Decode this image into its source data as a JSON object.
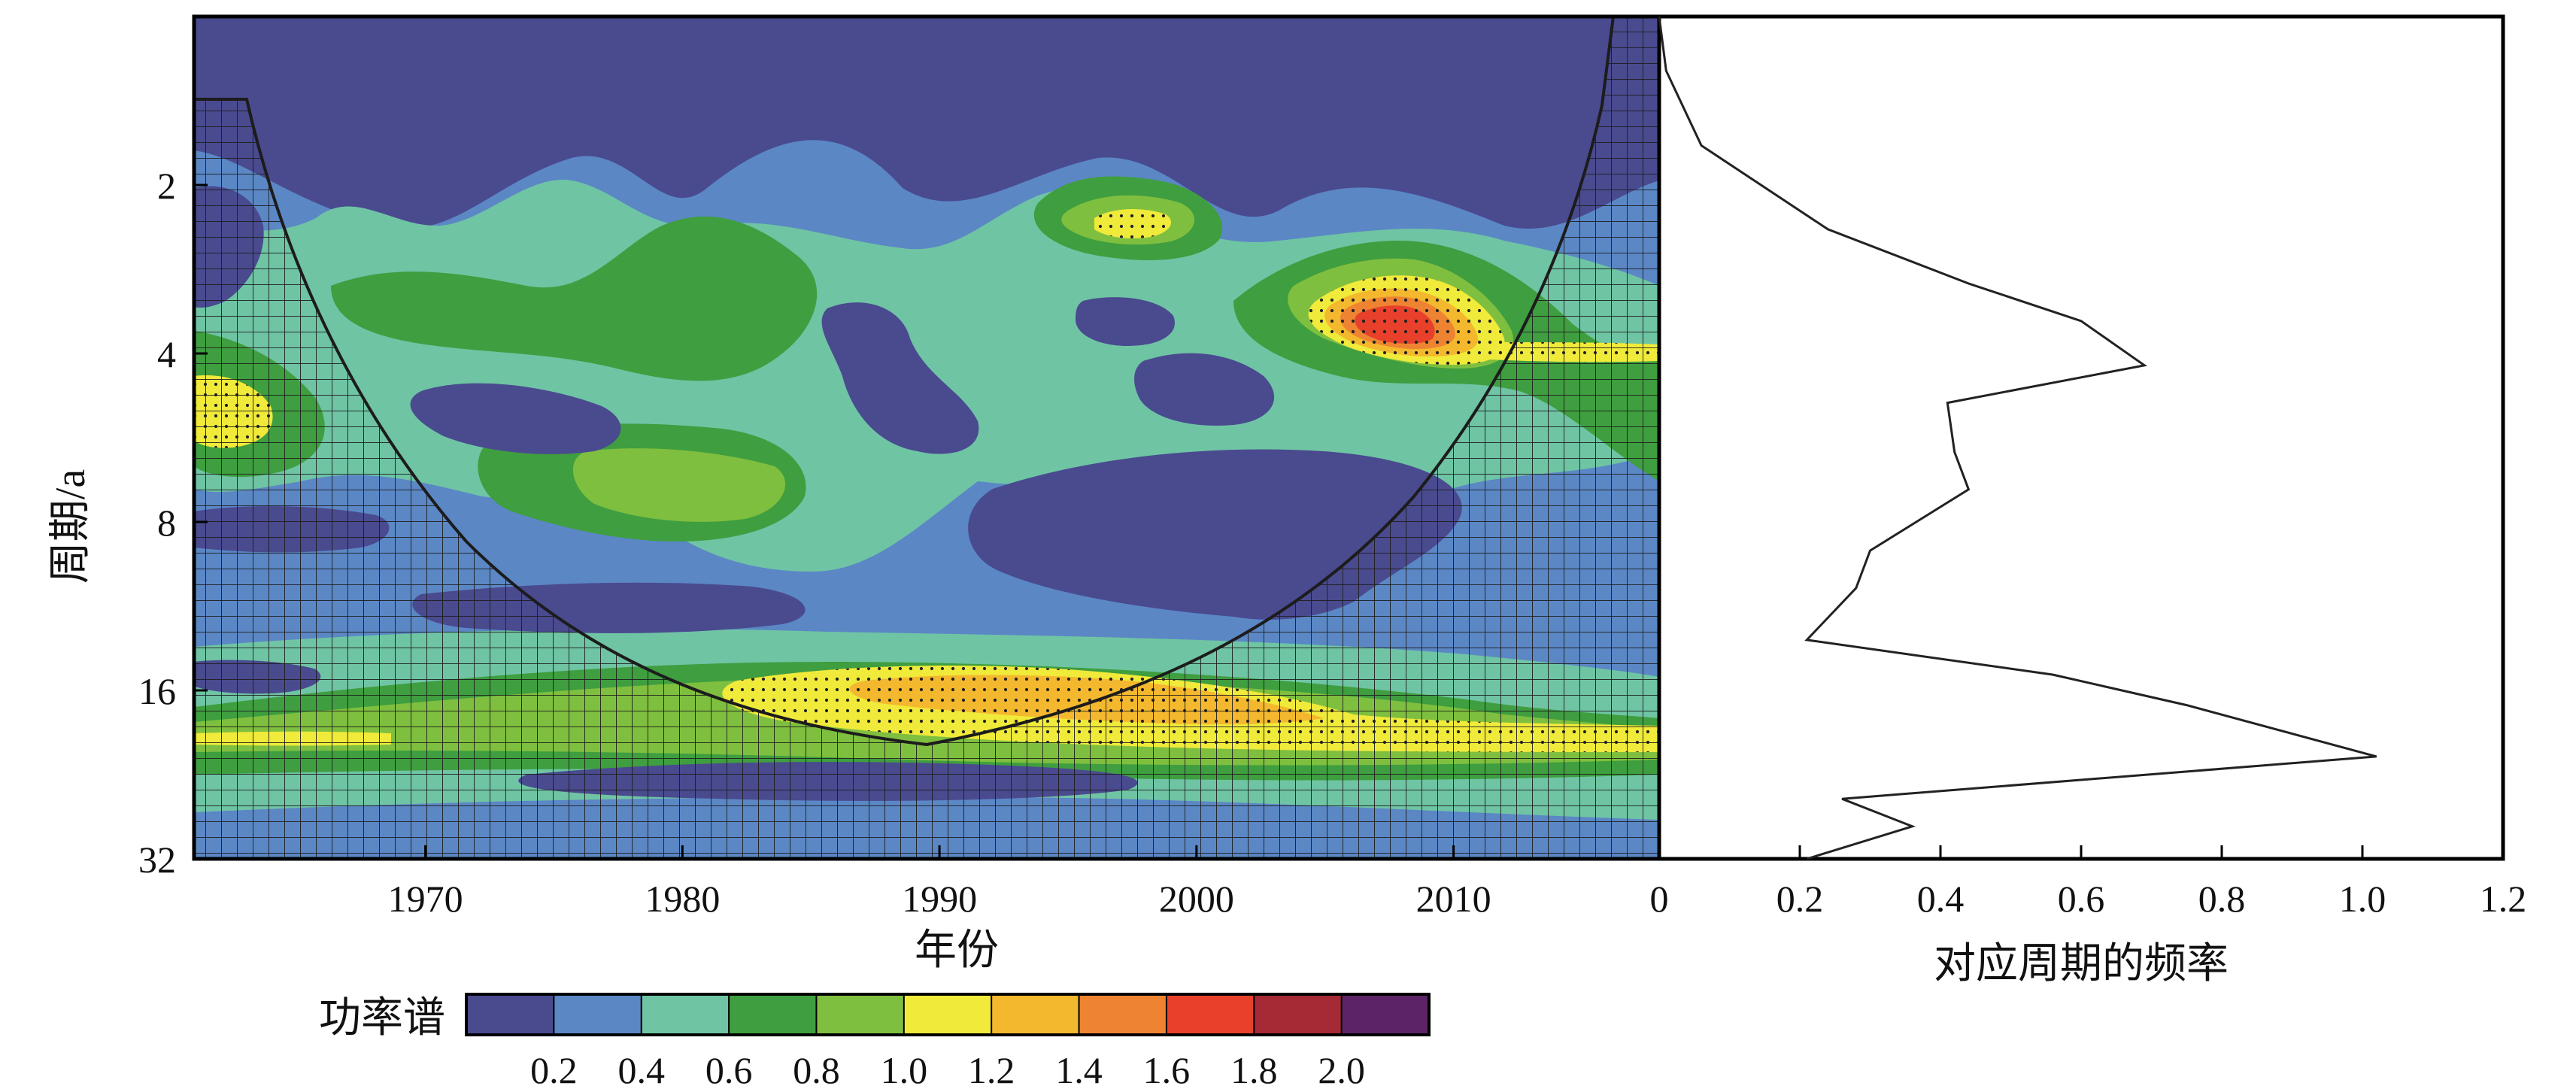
{
  "chart_data": [
    {
      "type": "heatmap",
      "subtype": "wavelet-power-spectrum",
      "xlabel": "年份",
      "ylabel": "周期/a",
      "xlim": [
        1961,
        2018
      ],
      "ylim": [
        1,
        32
      ],
      "y_scale": "log2",
      "x_ticks": [
        1970,
        1980,
        1990,
        2000,
        2010
      ],
      "y_ticks": [
        2,
        4,
        8,
        16,
        32
      ],
      "features": {
        "hatched_region": "cone-of-influence (outside)",
        "stippled_region": "significant power (≥1.0)"
      },
      "power_regions": [
        {
          "x": 1997,
          "y": 2.6,
          "peak": 1.1
        },
        {
          "x": 2007,
          "y": 3.6,
          "peak": 1.8
        },
        {
          "x": 2012,
          "y": 4.1,
          "peak": 1.05
        },
        {
          "x": 1963,
          "y": 5.4,
          "peak": 1.1
        },
        {
          "x": 1978,
          "y": 3.6,
          "peak": 0.7
        },
        {
          "x": 1978,
          "y": 7.5,
          "peak": 0.75
        },
        {
          "x": 1993,
          "y": 17.0,
          "peak": 1.35
        },
        {
          "x": 1964,
          "y": 19.5,
          "peak": 1.25
        }
      ]
    },
    {
      "type": "line",
      "xlabel": "对应周期的频率",
      "xlim": [
        0,
        1.2
      ],
      "x_ticks": [
        0,
        0.2,
        0.4,
        0.6,
        0.8,
        1.0,
        1.2
      ],
      "x_tick_labels": [
        "0",
        "0.2",
        "0.4",
        "0.6",
        "0.8",
        "1.0",
        "1.2"
      ],
      "ylim": [
        1,
        32
      ],
      "y_scale": "log2",
      "series": [
        {
          "points": [
            [
              0.0,
              1.0
            ],
            [
              0.01,
              1.25
            ],
            [
              0.06,
              1.7
            ],
            [
              0.24,
              2.4
            ],
            [
              0.44,
              3.0
            ],
            [
              0.6,
              3.5
            ],
            [
              0.69,
              4.2
            ],
            [
              0.41,
              4.9
            ],
            [
              0.42,
              6.0
            ],
            [
              0.44,
              7.0
            ],
            [
              0.3,
              9.0
            ],
            [
              0.28,
              10.5
            ],
            [
              0.21,
              13.0
            ],
            [
              0.56,
              15.0
            ],
            [
              0.75,
              17.0
            ],
            [
              1.02,
              21.0
            ],
            [
              0.26,
              25.0
            ],
            [
              0.36,
              28.0
            ],
            [
              0.21,
              32.0
            ]
          ]
        }
      ]
    }
  ],
  "colorbar": {
    "label": "功率谱",
    "tick_labels": [
      "0.2",
      "0.4",
      "0.6",
      "0.8",
      "1.0",
      "1.2",
      "1.4",
      "1.6",
      "1.8",
      "2.0"
    ],
    "colors": [
      "#4a4a8f",
      "#5b87c5",
      "#6fc4a4",
      "#3f9e3f",
      "#7fbf3f",
      "#f0ea3a",
      "#f4b82e",
      "#ee8432",
      "#e8402a",
      "#a52a36",
      "#5c2466"
    ]
  }
}
